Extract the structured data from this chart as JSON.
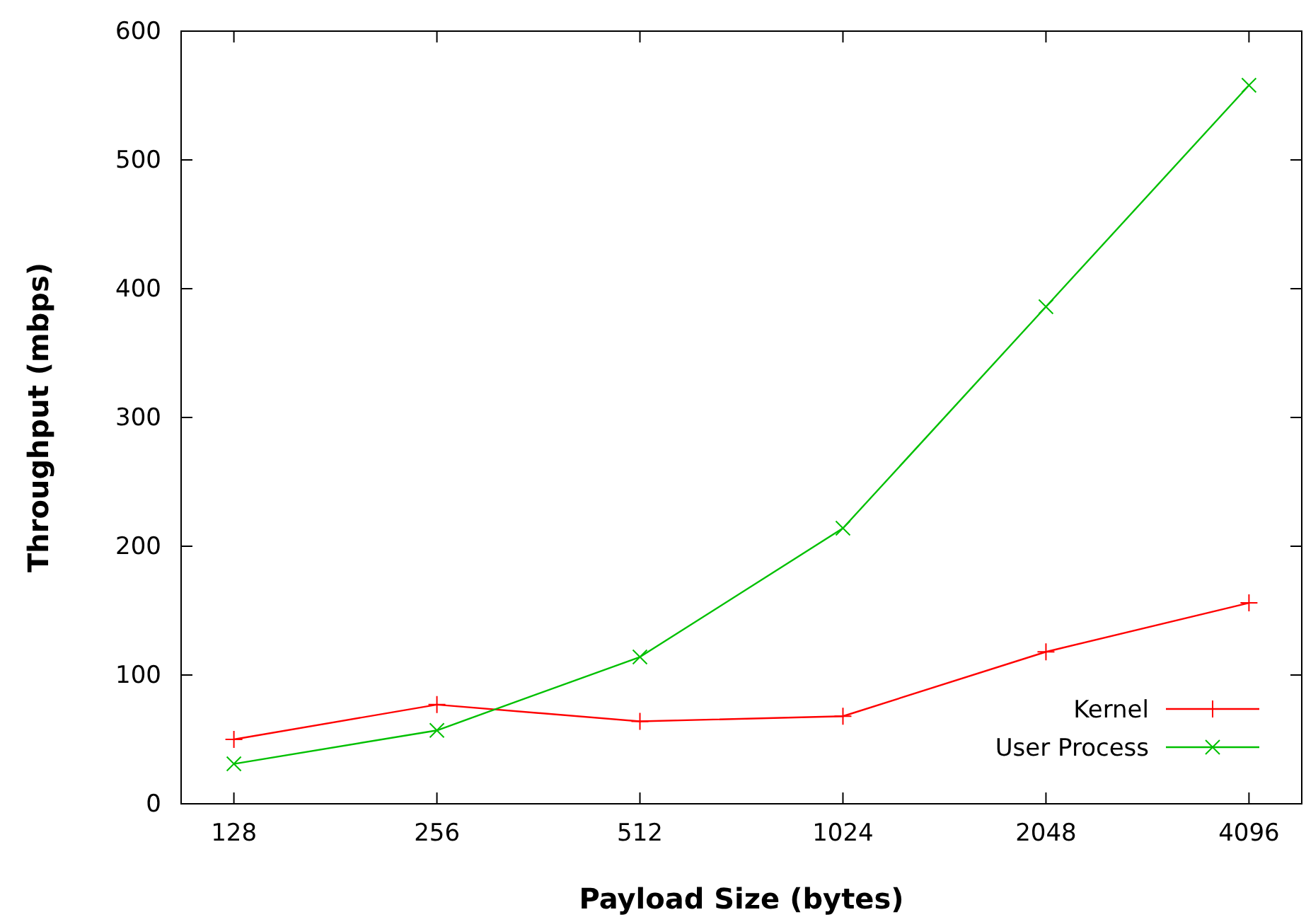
{
  "chart_data": {
    "type": "line",
    "xlabel": "Payload Size (bytes)",
    "ylabel": "Throughput (mbps)",
    "categories": [
      "128",
      "256",
      "512",
      "1024",
      "2048",
      "4096"
    ],
    "ylim": [
      0,
      600
    ],
    "yticks": [
      0,
      100,
      200,
      300,
      400,
      500,
      600
    ],
    "grid": false,
    "legend": "bottom right",
    "series": [
      {
        "name": "Kernel",
        "color": "#ff0000",
        "marker": "cross",
        "values": [
          50,
          77,
          64,
          68,
          118,
          156
        ]
      },
      {
        "name": "User Process",
        "color": "#00c000",
        "marker": "x",
        "values": [
          31,
          57,
          114,
          214,
          386,
          558
        ]
      }
    ]
  }
}
